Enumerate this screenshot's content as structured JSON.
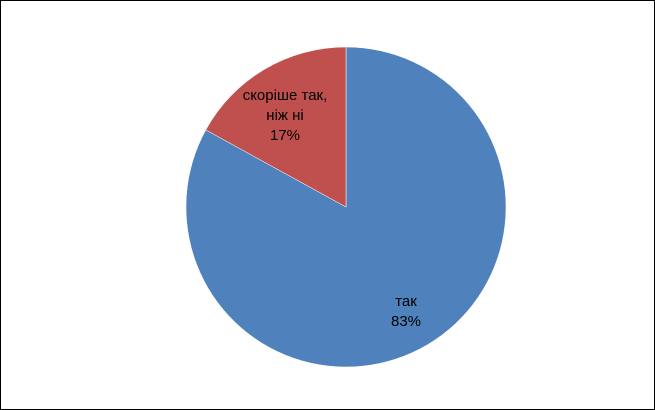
{
  "chart_data": {
    "type": "pie",
    "slices": [
      {
        "label_lines": [
          "так"
        ],
        "percent_label": "83%",
        "value": 83,
        "color": "#4F81BD"
      },
      {
        "label_lines": [
          "скоріше так,",
          "ніж ні"
        ],
        "percent_label": "17%",
        "value": 17,
        "color": "#C0504D"
      }
    ],
    "start_angle_deg": 0,
    "direction": "clockwise",
    "legend": "none",
    "title": ""
  }
}
